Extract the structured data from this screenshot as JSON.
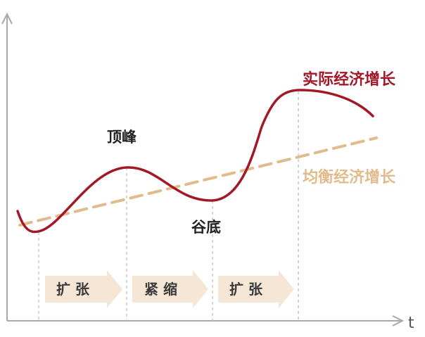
{
  "labels": {
    "actual_growth": "实际经济增长",
    "equilibrium_growth": "均衡经济增长",
    "peak": "顶峰",
    "trough": "谷底",
    "x_axis": "t"
  },
  "phases": [
    {
      "label": "扩 张"
    },
    {
      "label": "紧 缩"
    },
    {
      "label": "扩 张"
    }
  ],
  "colors": {
    "actual_curve": "#a31826",
    "trend_line": "#e2bb8c",
    "phase_arrow": "#f5e6d6",
    "axis": "#a9a9a9",
    "guide": "#c8c8c8"
  }
}
